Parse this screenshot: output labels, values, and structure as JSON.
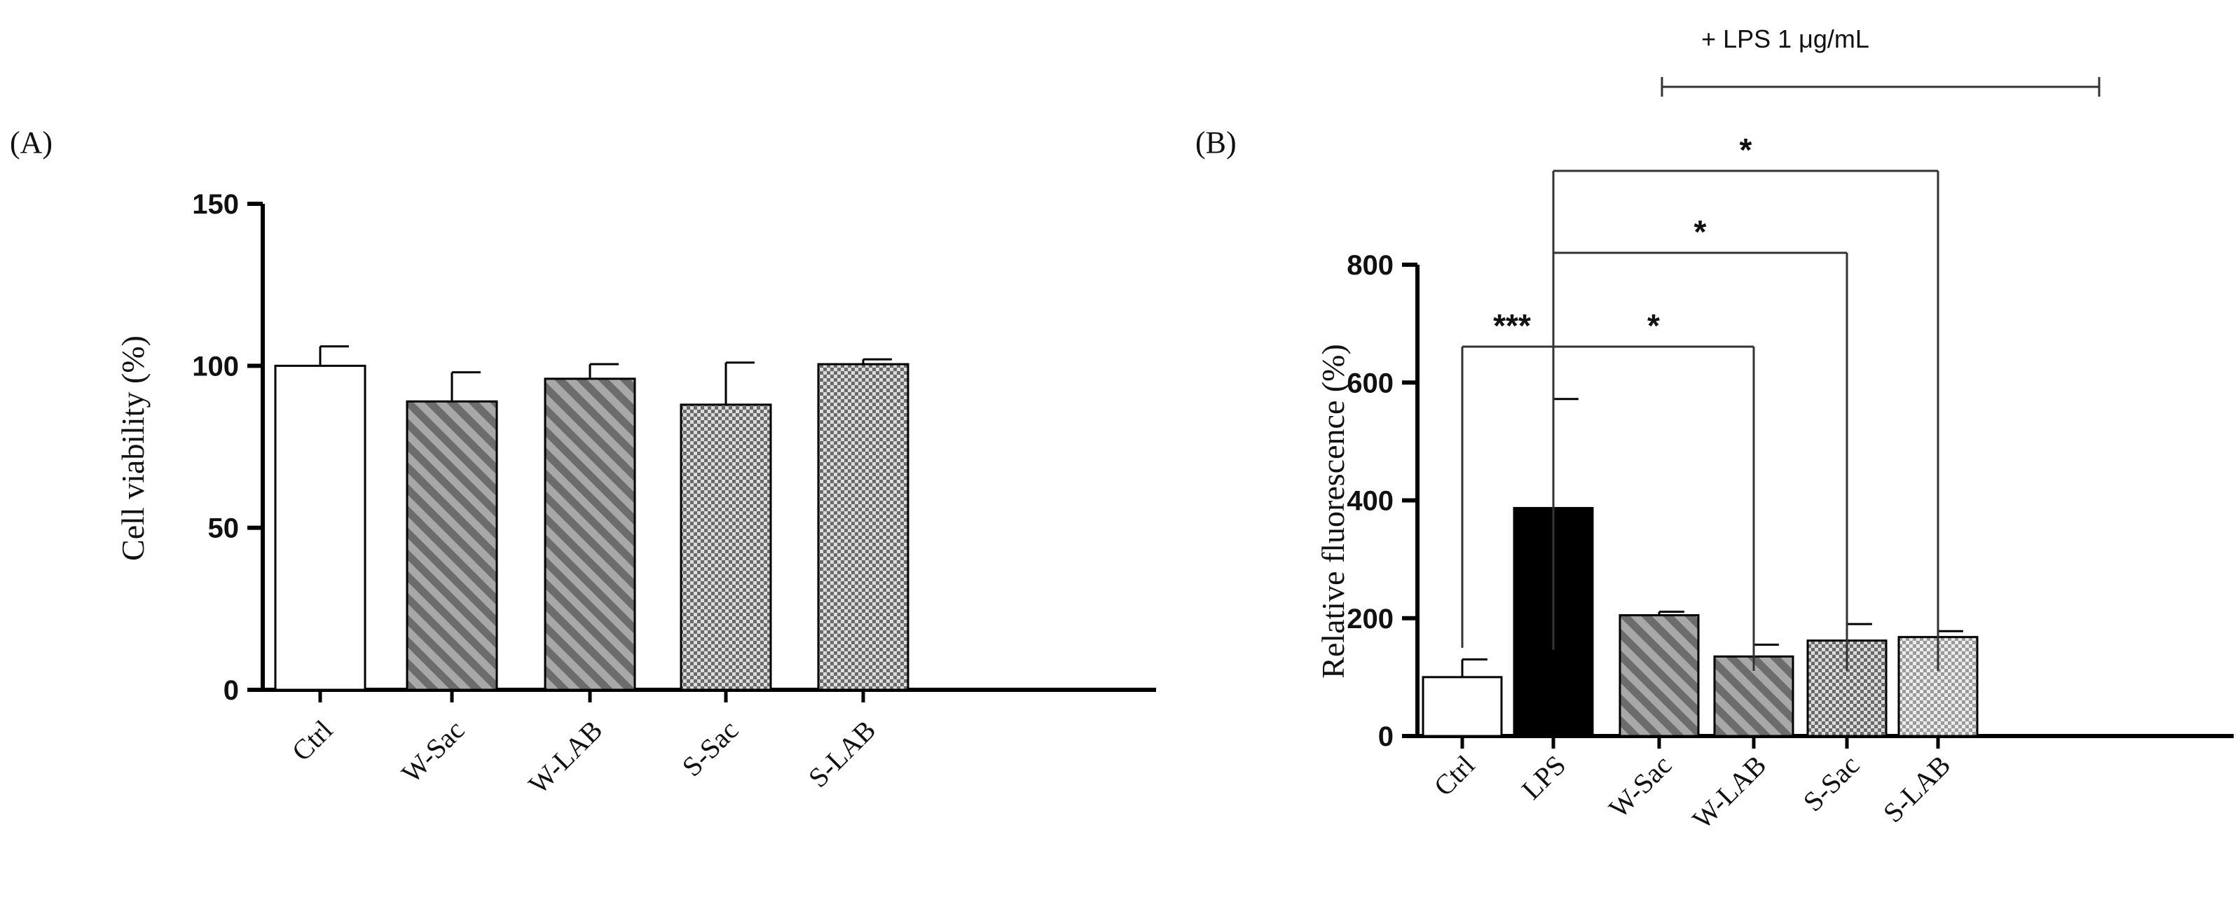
{
  "chart_data": [
    {
      "panel_label": "(A)",
      "type": "bar",
      "ylabel": "Cell viability (%)",
      "ylim": [
        0,
        150
      ],
      "yticks": [
        "0",
        "50",
        "100",
        "150"
      ],
      "categories": [
        "Ctrl",
        "W-Sac",
        "W-LAB",
        "S-Sac",
        "S-LAB"
      ],
      "values": [
        100,
        89,
        96,
        88,
        100.5
      ],
      "errors": [
        6,
        9,
        4.5,
        13,
        1.5
      ],
      "bar_styles": [
        "white",
        "hatch",
        "hatch",
        "check",
        "check"
      ],
      "grid": false,
      "significance": []
    },
    {
      "panel_label": "(B)",
      "type": "bar",
      "ylabel": "Relative fluorescence (%)",
      "ylim": [
        0,
        800
      ],
      "yticks": [
        "0",
        "200",
        "400",
        "600",
        "800"
      ],
      "categories": [
        "Ctrl",
        "LPS",
        "W-Sac",
        "W-LAB",
        "S-Sac",
        "S-LAB"
      ],
      "values": [
        100,
        387,
        205,
        135,
        162,
        168
      ],
      "errors": [
        30,
        185,
        6,
        20,
        28,
        10
      ],
      "bar_styles": [
        "white",
        "black",
        "hatch",
        "hatch",
        "check",
        "checklight"
      ],
      "grid": false,
      "treatment_label": "+ LPS 1 μg/mL",
      "significance": [
        {
          "from": "Ctrl",
          "to": "LPS",
          "label": "***"
        },
        {
          "from": "LPS",
          "to": "W-LAB",
          "label": "*"
        },
        {
          "from": "LPS",
          "to": "S-Sac",
          "label": "*"
        },
        {
          "from": "LPS",
          "to": "S-LAB",
          "label": "*"
        }
      ]
    }
  ]
}
